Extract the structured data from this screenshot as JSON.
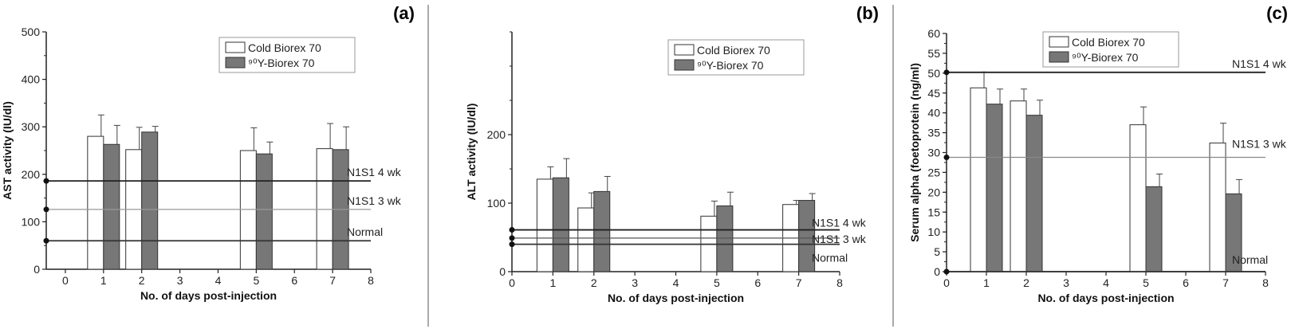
{
  "chart_data": [
    {
      "type": "bar",
      "panel": "(a)",
      "x": [
        1,
        2,
        5,
        7
      ],
      "xlabel": "No. of days post-injection",
      "ylabel": "AST activity (IU/dl)",
      "xlim": [
        -0.5,
        8
      ],
      "ylim": [
        0,
        500
      ],
      "xticks": [
        0,
        1,
        2,
        3,
        4,
        5,
        6,
        7,
        8
      ],
      "yticks": [
        0,
        100,
        200,
        300,
        400,
        500
      ],
      "series": [
        {
          "name": "Cold Biorex 70",
          "color": "#ffffff",
          "values": [
            280,
            252,
            250,
            254
          ],
          "errors": [
            45,
            47,
            48,
            53
          ]
        },
        {
          "name": "⁹⁰Y-Biorex 70",
          "color": "#777777",
          "values": [
            263,
            289,
            243,
            252
          ],
          "errors": [
            40,
            12,
            25,
            48
          ]
        }
      ],
      "reference_lines": [
        {
          "label": "N1S1 4 wk",
          "value": 186,
          "color": "#222222"
        },
        {
          "label": "N1S1 3 wk",
          "value": 126,
          "color": "#999999"
        },
        {
          "label": "Normal",
          "value": 60,
          "color": "#333333"
        }
      ],
      "legend": "top-right"
    },
    {
      "type": "bar",
      "panel": "(b)",
      "x": [
        1,
        2,
        5,
        7
      ],
      "xlabel": "No. of days post-injection",
      "ylabel": "ALT activity (IU/dl)",
      "xlim": [
        0,
        8
      ],
      "ylim": [
        0,
        350
      ],
      "xticks": [
        0,
        1,
        2,
        3,
        4,
        5,
        6,
        7,
        8
      ],
      "yticks": [
        0,
        100,
        200
      ],
      "series": [
        {
          "name": "Cold Biorex 70",
          "color": "#ffffff",
          "values": [
            135,
            93,
            81,
            98
          ],
          "errors": [
            18,
            22,
            22,
            6
          ]
        },
        {
          "name": "⁹⁰Y-Biorex 70",
          "color": "#777777",
          "values": [
            137,
            117,
            96,
            104
          ],
          "errors": [
            28,
            22,
            20,
            10
          ]
        }
      ],
      "reference_lines": [
        {
          "label": "N1S1 4 wk",
          "value": 61,
          "color": "#222222"
        },
        {
          "label": "N1S1 3 wk",
          "value": 49,
          "color": "#555555"
        },
        {
          "label": "Normal",
          "value": 40,
          "color": "#333333"
        }
      ],
      "legend": "top-right"
    },
    {
      "type": "bar",
      "panel": "(c)",
      "x": [
        1,
        2,
        5,
        7
      ],
      "xlabel": "No. of days post-injection",
      "ylabel": "Serum alpha (foetoprotein (ng/ml)",
      "xlim": [
        0,
        8
      ],
      "ylim": [
        0,
        60
      ],
      "xticks": [
        0,
        1,
        2,
        3,
        4,
        5,
        6,
        7,
        8
      ],
      "yticks": [
        0,
        5,
        10,
        15,
        20,
        25,
        30,
        35,
        40,
        45,
        50,
        55,
        60
      ],
      "series": [
        {
          "name": "Cold Biorex 70",
          "color": "#ffffff",
          "values": [
            46.3,
            43,
            37,
            32.4
          ],
          "errors": [
            4,
            3,
            4.5,
            5
          ]
        },
        {
          "name": "⁹⁰Y-Biorex 70",
          "color": "#777777",
          "values": [
            42.2,
            39.4,
            21.4,
            19.6
          ],
          "errors": [
            3.8,
            3.8,
            3.2,
            3.6
          ]
        }
      ],
      "reference_lines": [
        {
          "label": "N1S1 4 wk",
          "value": 50.2,
          "color": "#222222"
        },
        {
          "label": "N1S1 3 wk",
          "value": 28.8,
          "color": "#888888"
        },
        {
          "label": "Normal",
          "value": 0,
          "color": "#333333"
        }
      ],
      "legend": "top-left"
    }
  ]
}
